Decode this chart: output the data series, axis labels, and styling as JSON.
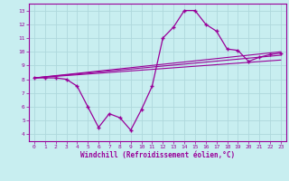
{
  "xlabel": "Windchill (Refroidissement éolien,°C)",
  "background_color": "#c8eef0",
  "grid_color": "#aed8dc",
  "line_color": "#990099",
  "xlim": [
    -0.5,
    23.5
  ],
  "ylim": [
    3.5,
    13.5
  ],
  "xticks": [
    0,
    1,
    2,
    3,
    4,
    5,
    6,
    7,
    8,
    9,
    10,
    11,
    12,
    13,
    14,
    15,
    16,
    17,
    18,
    19,
    20,
    21,
    22,
    23
  ],
  "yticks": [
    4,
    5,
    6,
    7,
    8,
    9,
    10,
    11,
    12,
    13
  ],
  "line1_x": [
    0,
    1,
    2,
    3,
    4,
    5,
    6,
    7,
    8,
    9,
    10,
    11,
    12,
    13,
    14,
    15,
    16,
    17,
    18,
    19,
    20,
    21,
    22,
    23
  ],
  "line1_y": [
    8.1,
    8.1,
    8.1,
    8.0,
    7.5,
    6.0,
    4.5,
    5.5,
    5.2,
    4.3,
    5.8,
    7.5,
    11.0,
    11.8,
    13.0,
    13.0,
    12.0,
    11.5,
    10.2,
    10.1,
    9.3,
    9.6,
    9.8,
    9.9
  ],
  "line2_x": [
    0,
    23
  ],
  "line2_y": [
    8.1,
    10.0
  ],
  "line3_x": [
    0,
    23
  ],
  "line3_y": [
    8.1,
    9.75
  ],
  "line4_x": [
    0,
    23
  ],
  "line4_y": [
    8.1,
    9.4
  ]
}
